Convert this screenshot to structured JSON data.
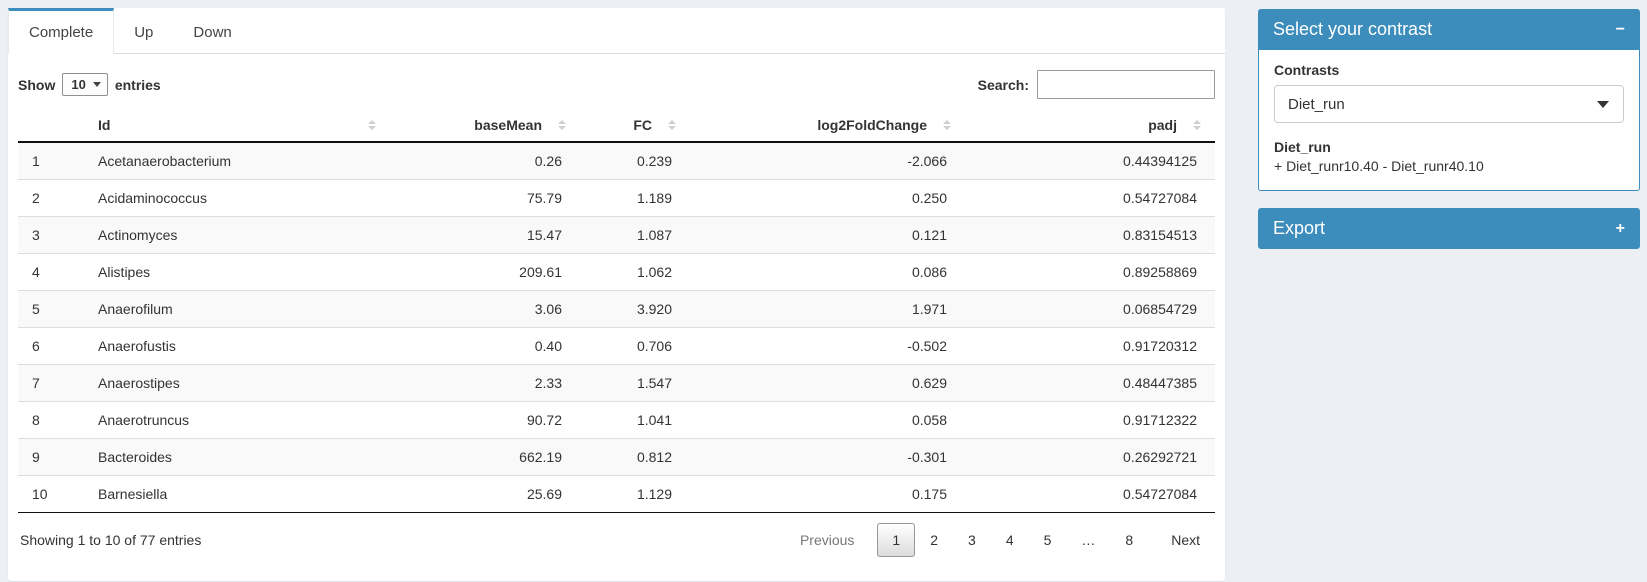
{
  "colors": {
    "primary": "#3c8dbc",
    "page_bg": "#ecf0f5",
    "stripe": "#f9f9f9"
  },
  "tabs": [
    {
      "label": "Complete",
      "active": true
    },
    {
      "label": "Up",
      "active": false
    },
    {
      "label": "Down",
      "active": false
    }
  ],
  "table_controls": {
    "show_label": "Show",
    "page_length": "10",
    "entries_label": "entries",
    "search_label": "Search:",
    "search_value": ""
  },
  "table": {
    "columns": [
      "Id",
      "baseMean",
      "FC",
      "log2FoldChange",
      "padj"
    ],
    "rows": [
      {
        "index": "1",
        "id": "Acetanaerobacterium",
        "baseMean": "0.26",
        "fc": "0.239",
        "log2fc": "-2.066",
        "padj": "0.44394125"
      },
      {
        "index": "2",
        "id": "Acidaminococcus",
        "baseMean": "75.79",
        "fc": "1.189",
        "log2fc": "0.250",
        "padj": "0.54727084"
      },
      {
        "index": "3",
        "id": "Actinomyces",
        "baseMean": "15.47",
        "fc": "1.087",
        "log2fc": "0.121",
        "padj": "0.83154513"
      },
      {
        "index": "4",
        "id": "Alistipes",
        "baseMean": "209.61",
        "fc": "1.062",
        "log2fc": "0.086",
        "padj": "0.89258869"
      },
      {
        "index": "5",
        "id": "Anaerofilum",
        "baseMean": "3.06",
        "fc": "3.920",
        "log2fc": "1.971",
        "padj": "0.06854729"
      },
      {
        "index": "6",
        "id": "Anaerofustis",
        "baseMean": "0.40",
        "fc": "0.706",
        "log2fc": "-0.502",
        "padj": "0.91720312"
      },
      {
        "index": "7",
        "id": "Anaerostipes",
        "baseMean": "2.33",
        "fc": "1.547",
        "log2fc": "0.629",
        "padj": "0.48447385"
      },
      {
        "index": "8",
        "id": "Anaerotruncus",
        "baseMean": "90.72",
        "fc": "1.041",
        "log2fc": "0.058",
        "padj": "0.91712322"
      },
      {
        "index": "9",
        "id": "Bacteroides",
        "baseMean": "662.19",
        "fc": "0.812",
        "log2fc": "-0.301",
        "padj": "0.26292721"
      },
      {
        "index": "10",
        "id": "Barnesiella",
        "baseMean": "25.69",
        "fc": "1.129",
        "log2fc": "0.175",
        "padj": "0.54727084"
      }
    ]
  },
  "footer": {
    "info": "Showing 1 to 10 of 77 entries",
    "pagination": {
      "previous": "Previous",
      "pages": [
        {
          "label": "1",
          "active": true
        },
        {
          "label": "2",
          "active": false
        },
        {
          "label": "3",
          "active": false
        },
        {
          "label": "4",
          "active": false
        },
        {
          "label": "5",
          "active": false
        },
        {
          "label": "…",
          "active": false
        },
        {
          "label": "8",
          "active": false
        }
      ],
      "next": "Next"
    }
  },
  "contrast_panel": {
    "title": "Select your contrast",
    "collapse_icon": "−",
    "contrasts_label": "Contrasts",
    "selected_contrast": "Diet_run",
    "contrast_name": "Diet_run",
    "contrast_formula": "+ Diet_runr10.40 - Diet_runr40.10"
  },
  "export_panel": {
    "title": "Export",
    "expand_icon": "+"
  }
}
